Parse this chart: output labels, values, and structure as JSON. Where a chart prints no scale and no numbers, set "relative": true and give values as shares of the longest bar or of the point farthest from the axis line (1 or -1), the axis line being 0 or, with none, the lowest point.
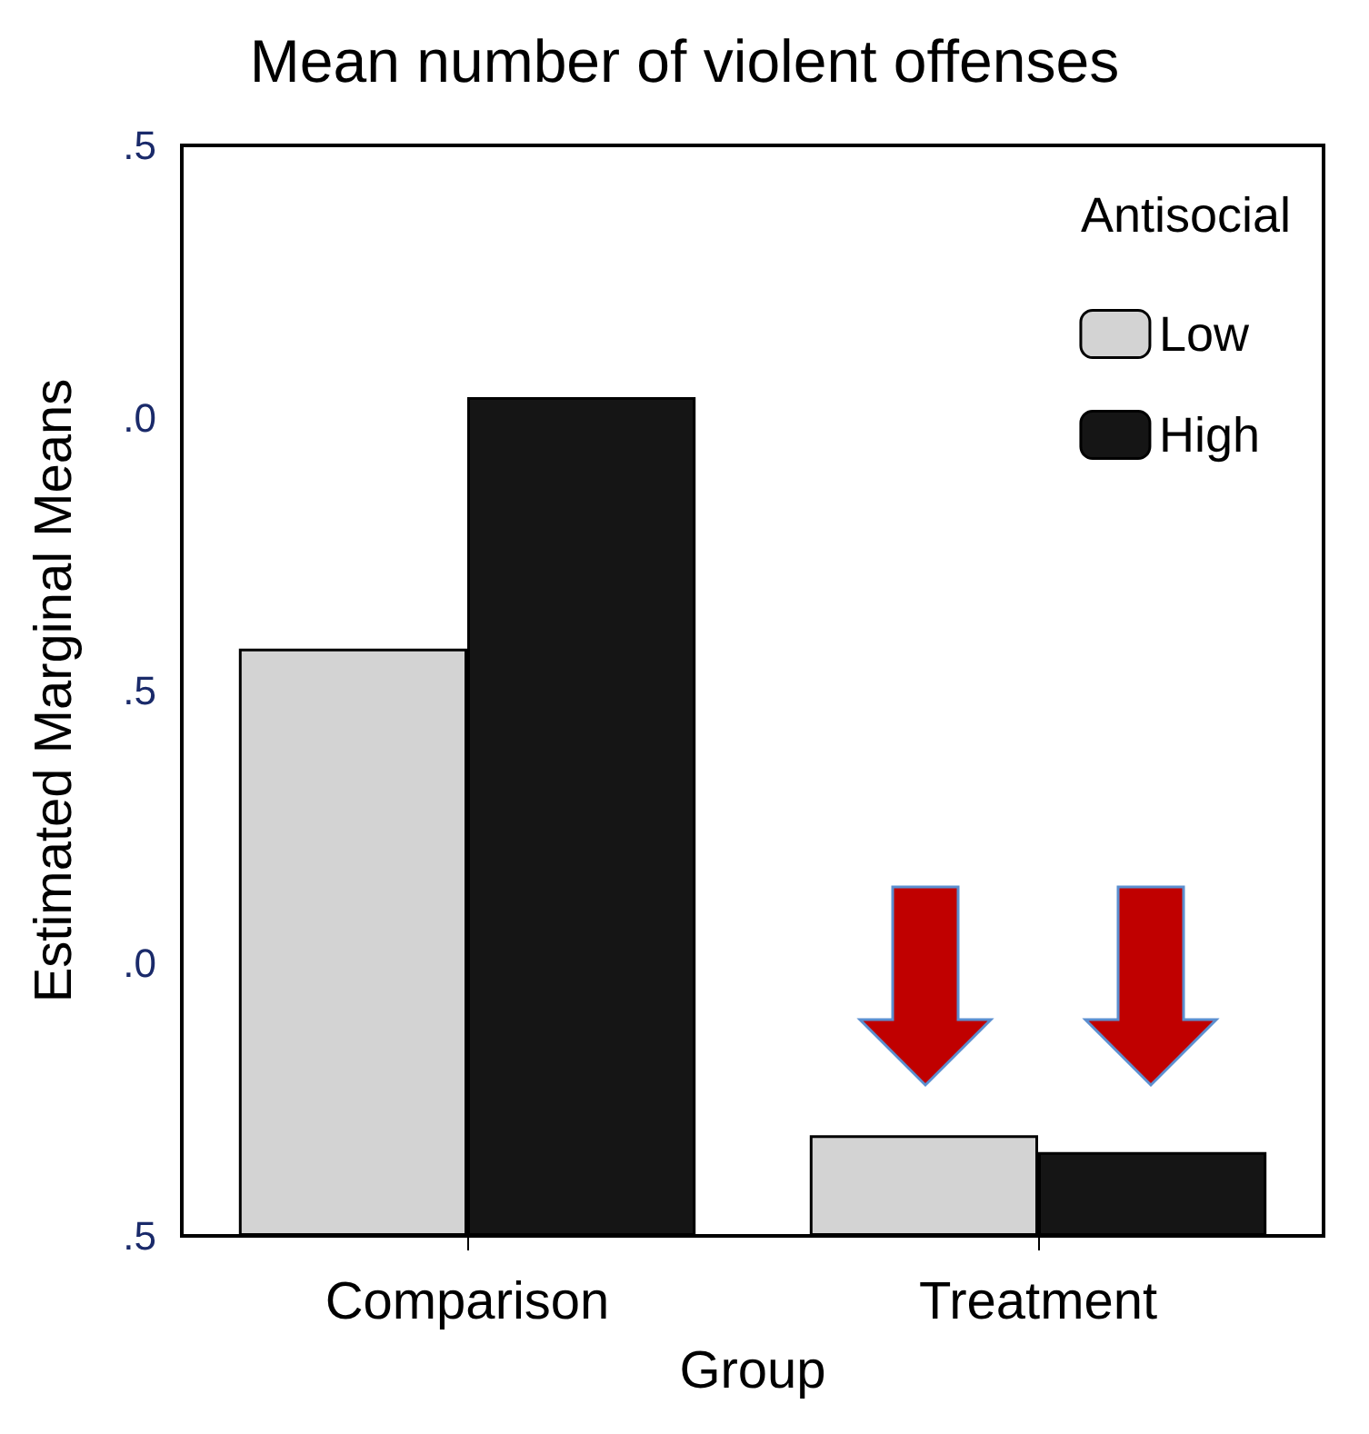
{
  "chart_data": {
    "type": "bar",
    "title": "Mean number of violent offenses",
    "xlabel": "Group",
    "ylabel": "Estimated Marginal Means",
    "legend_title": "Antisocial",
    "categories": [
      "Comparison",
      "Treatment"
    ],
    "series": [
      {
        "name": "Low",
        "color": "#d3d3d3",
        "values": [
          0.7,
          0.12
        ]
      },
      {
        "name": "High",
        "color": "#151515",
        "values": [
          1,
          0.1
        ]
      }
    ],
    "relative": true,
    "annotations": [
      ".5",
      ".0",
      ".5",
      ".0",
      ".5"
    ],
    "legend": "top right"
  }
}
